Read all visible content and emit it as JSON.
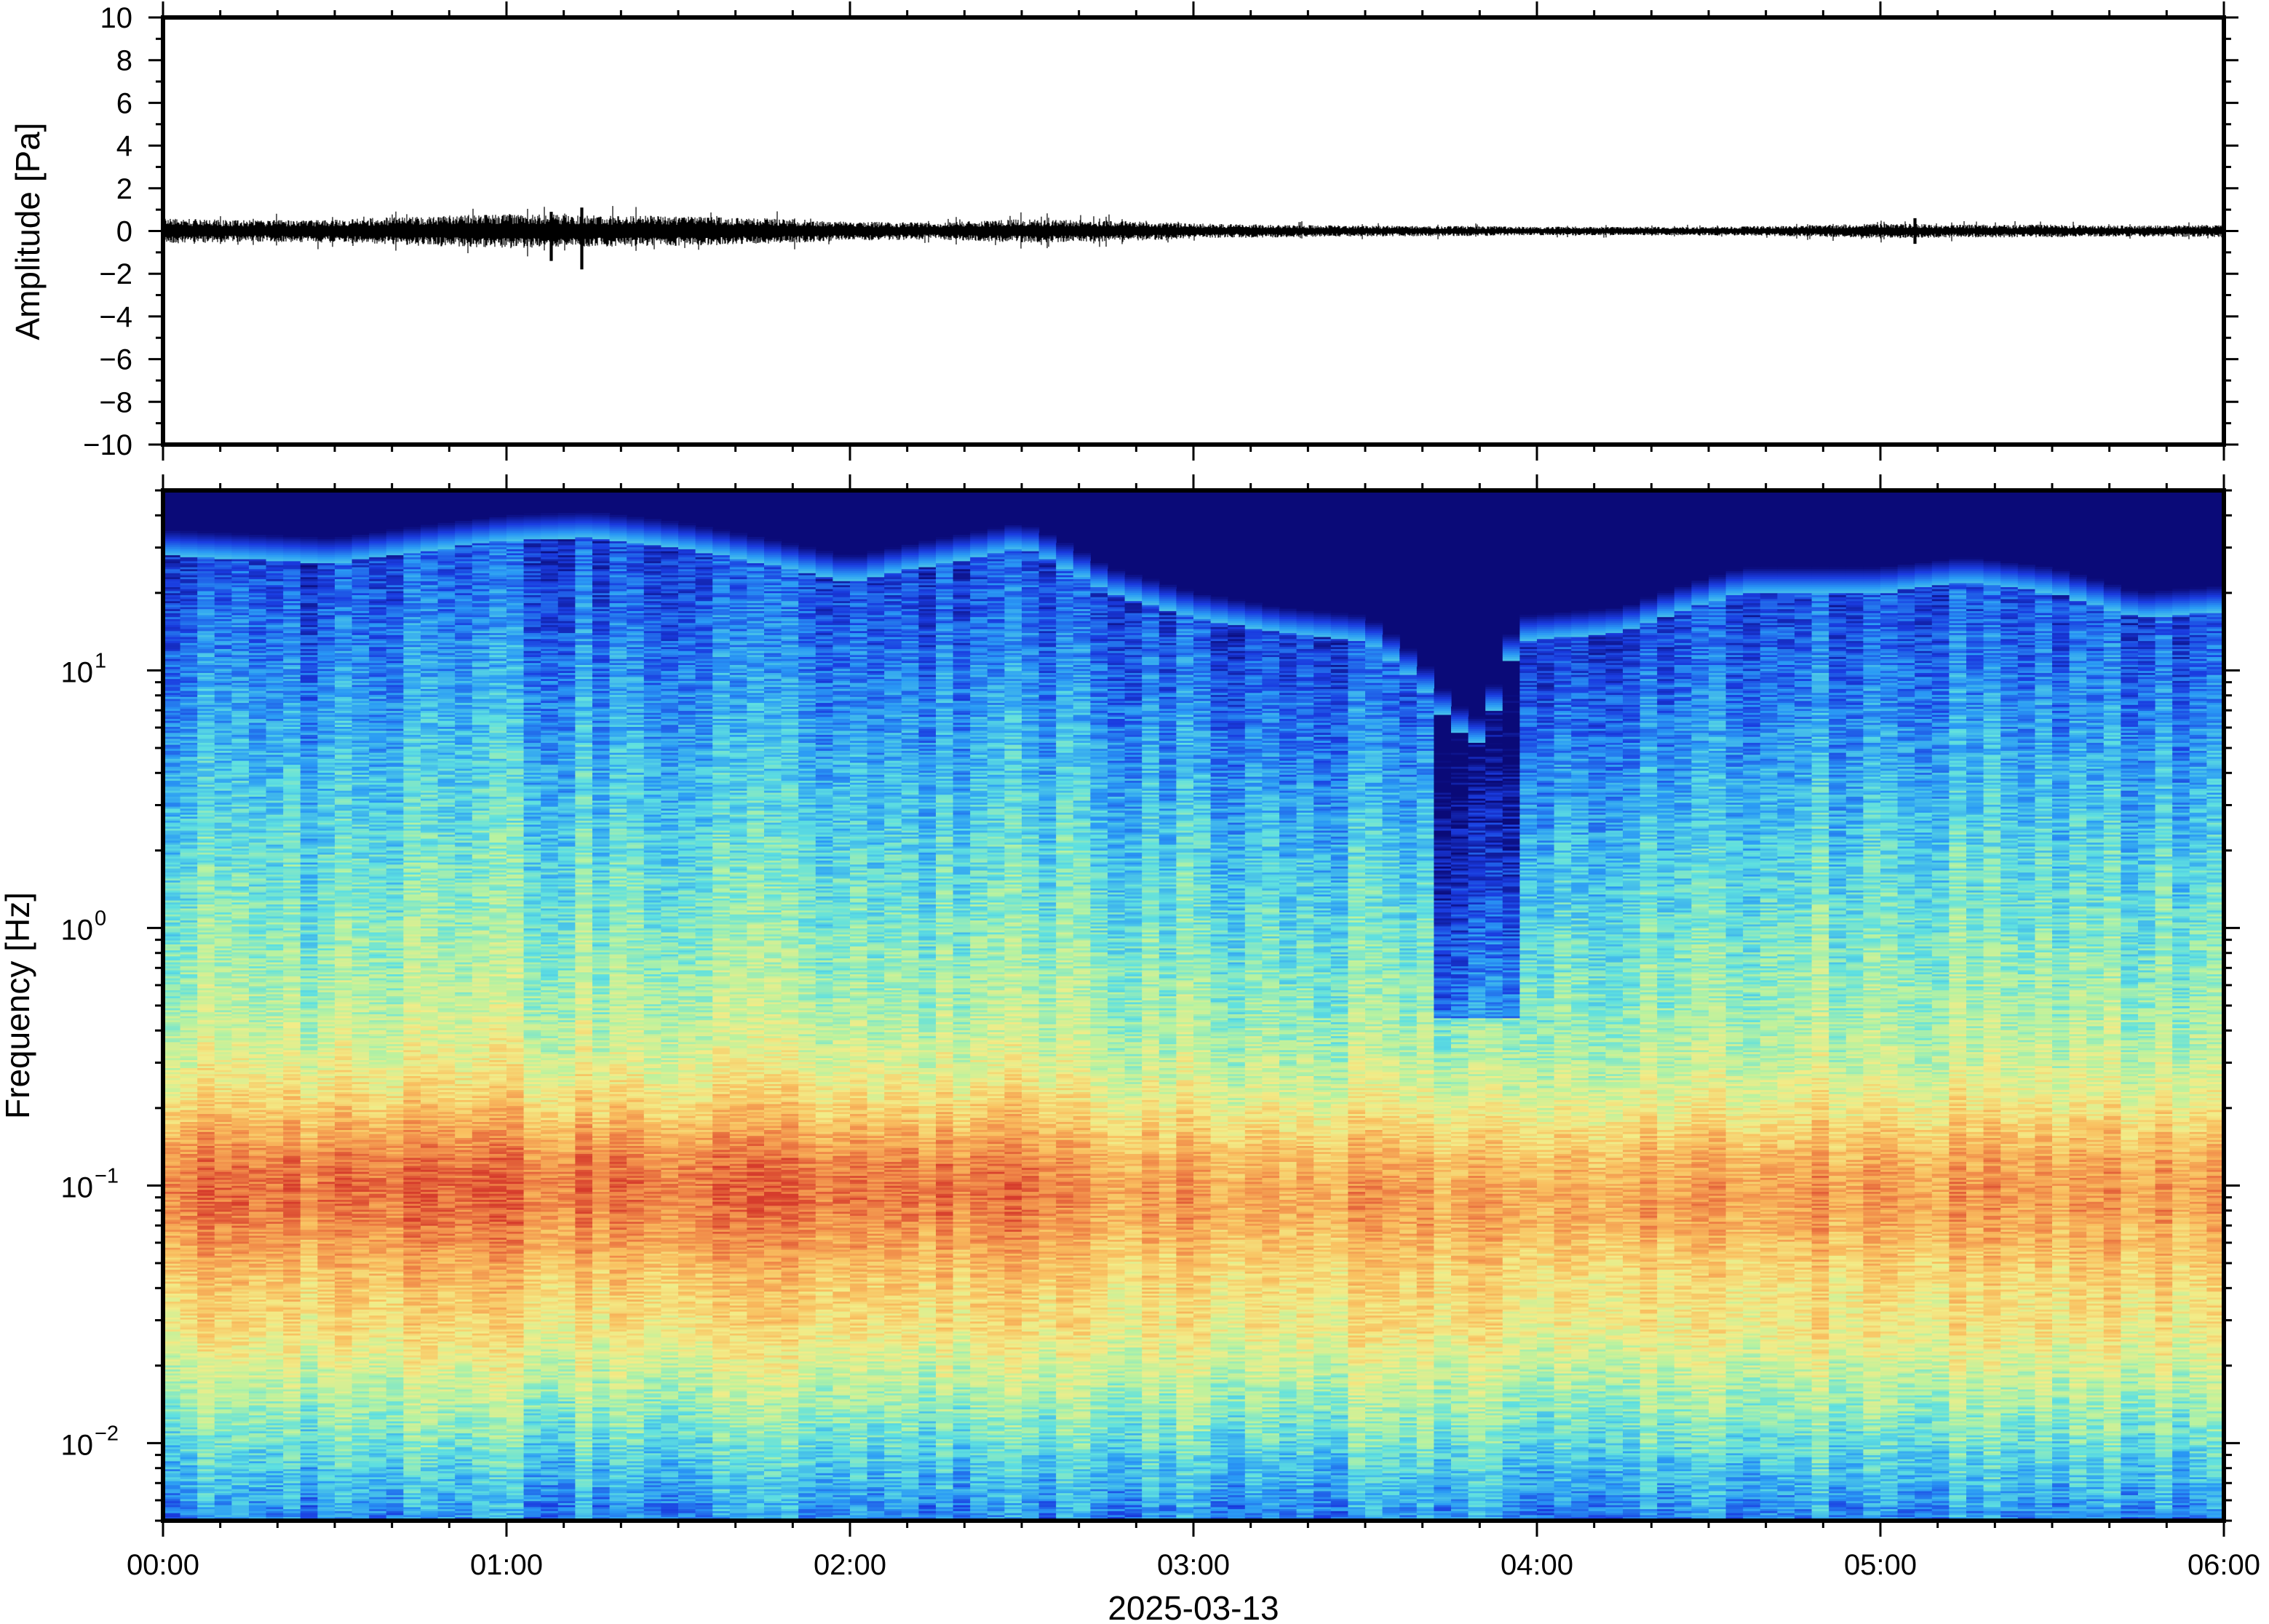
{
  "chart_data": [
    {
      "type": "line",
      "panel": "waveform",
      "xlabel": "2025-03-13",
      "ylabel": "Amplitude [Pa]",
      "x_ticks": [
        "00:00",
        "01:00",
        "02:00",
        "03:00",
        "04:00",
        "05:00",
        "06:00"
      ],
      "y_ticks": [
        "10",
        "8",
        "6",
        "4",
        "2",
        "0",
        "−2",
        "−4",
        "−6",
        "−8",
        "−10"
      ],
      "xlim_hours": [
        0,
        6
      ],
      "ylim": [
        -10,
        10
      ],
      "line_color": "#000000",
      "envelope": {
        "hours": [
          0.0,
          0.25,
          0.5,
          0.75,
          1.0,
          1.25,
          1.5,
          1.75,
          2.0,
          2.25,
          2.5,
          2.75,
          3.0,
          3.25,
          3.5,
          3.75,
          4.0,
          4.25,
          4.5,
          4.75,
          5.0,
          5.25,
          5.5,
          5.75,
          6.0
        ],
        "amplitude": [
          0.6,
          0.5,
          0.55,
          0.7,
          0.8,
          0.75,
          0.7,
          0.6,
          0.45,
          0.4,
          0.55,
          0.5,
          0.35,
          0.3,
          0.25,
          0.25,
          0.2,
          0.2,
          0.2,
          0.25,
          0.35,
          0.3,
          0.3,
          0.25,
          0.3
        ]
      },
      "peaks": [
        {
          "hour": 1.22,
          "min": -1.8,
          "max": 1.1
        },
        {
          "hour": 1.13,
          "min": -1.4,
          "max": 0.9
        },
        {
          "hour": 5.1,
          "min": -0.6,
          "max": 0.6
        }
      ]
    },
    {
      "type": "heatmap",
      "panel": "spectrogram",
      "xlabel": "2025-03-13",
      "ylabel": "Frequency [Hz]",
      "x_ticks": [
        "00:00",
        "01:00",
        "02:00",
        "03:00",
        "04:00",
        "05:00",
        "06:00"
      ],
      "y_ticks": [
        {
          "base": "10",
          "exp": "−2",
          "value": 0.01
        },
        {
          "base": "10",
          "exp": "−1",
          "value": 0.1
        },
        {
          "base": "10",
          "exp": "0",
          "value": 1
        },
        {
          "base": "10",
          "exp": "1",
          "value": 10
        }
      ],
      "y_scale": "log",
      "ylim_hz": [
        0.005,
        50
      ],
      "xlim_hours": [
        0,
        6
      ],
      "colormap": [
        "#0a0a78",
        "#1a3ce0",
        "#2a9af5",
        "#5fe0e0",
        "#b8f2a0",
        "#f2ec88",
        "#f9c060",
        "#f08848",
        "#d63c2c"
      ],
      "cutoff_hz": {
        "hours": [
          0.0,
          0.5,
          1.0,
          1.25,
          1.5,
          1.75,
          2.0,
          2.4,
          2.5,
          2.75,
          3.0,
          3.25,
          3.5,
          3.65,
          3.75,
          3.85,
          3.95,
          4.25,
          4.6,
          5.0,
          5.25,
          5.5,
          5.75,
          6.0
        ],
        "hz": [
          28,
          26,
          32,
          33,
          30,
          26,
          22,
          28,
          30,
          20,
          16,
          14,
          13,
          9,
          6,
          5,
          13,
          14,
          20,
          20,
          22,
          20,
          16,
          17
        ]
      },
      "peak_band_hz": [
        0.05,
        0.2
      ],
      "deep_notch": {
        "hours_from": 3.7,
        "hours_to": 3.95,
        "down_to_hz": 0.45
      }
    }
  ],
  "colors": {
    "axis": "#000000",
    "background": "#ffffff",
    "saturated_top": "#0a0a78"
  }
}
